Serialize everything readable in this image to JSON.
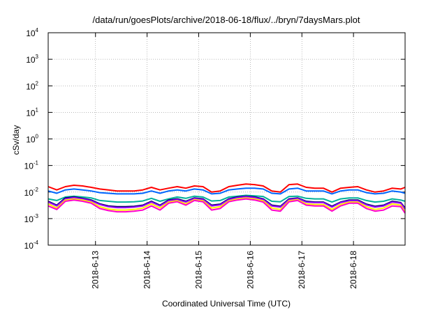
{
  "chart_data": {
    "type": "line",
    "title": "/data/run/goesPlots/archive/2018-06-18/flux/../bryn/7daysMars.plot",
    "xlabel": "Coordinated Universal Time (UTC)",
    "ylabel": "cSv/day",
    "x_range": [
      "2018-06-12 02:00",
      "2018-06-19 00:00"
    ],
    "x_tick_dates": [
      "2018-06-13 00:00",
      "2018-06-14 00:00",
      "2018-06-15 00:00",
      "2018-06-16 00:00",
      "2018-06-17 00:00",
      "2018-06-18 00:00"
    ],
    "x_tick_labels": [
      "2018-6-13",
      "2018-6-14",
      "2018-6-15",
      "2018-6-16",
      "2018-6-17",
      "2018-6-18"
    ],
    "y_scale": "log",
    "ylim": [
      0.0001,
      10000
    ],
    "y_tick_bases": [
      "10",
      "10",
      "10",
      "10",
      "10",
      "10",
      "10",
      "10",
      "10"
    ],
    "y_tick_exponents": [
      "4",
      "3",
      "2",
      "1",
      "0",
      "-1",
      "-2",
      "-3",
      "-4"
    ],
    "grid": true,
    "x": [
      "06-12 02:00",
      "06-12 06:00",
      "06-12 10:00",
      "06-12 14:00",
      "06-12 18:00",
      "06-12 22:00",
      "06-13 02:00",
      "06-13 06:00",
      "06-13 10:00",
      "06-13 14:00",
      "06-13 18:00",
      "06-13 22:00",
      "06-14 02:00",
      "06-14 06:00",
      "06-14 10:00",
      "06-14 14:00",
      "06-14 18:00",
      "06-14 22:00",
      "06-15 02:00",
      "06-15 06:00",
      "06-15 10:00",
      "06-15 14:00",
      "06-15 18:00",
      "06-15 22:00",
      "06-16 02:00",
      "06-16 06:00",
      "06-16 10:00",
      "06-16 14:00",
      "06-16 18:00",
      "06-16 22:00",
      "06-17 02:00",
      "06-17 06:00",
      "06-17 10:00",
      "06-17 14:00",
      "06-17 18:00",
      "06-17 22:00",
      "06-18 02:00",
      "06-18 06:00",
      "06-18 10:00",
      "06-18 14:00",
      "06-18 18:00",
      "06-18 22:00",
      "06-19 00:00"
    ],
    "series": [
      {
        "color": "#ff0000",
        "values": [
          0.016,
          0.012,
          0.016,
          0.018,
          0.017,
          0.015,
          0.013,
          0.012,
          0.011,
          0.011,
          0.011,
          0.012,
          0.015,
          0.012,
          0.014,
          0.016,
          0.014,
          0.017,
          0.016,
          0.01,
          0.011,
          0.016,
          0.018,
          0.02,
          0.019,
          0.017,
          0.011,
          0.01,
          0.019,
          0.02,
          0.015,
          0.014,
          0.014,
          0.01,
          0.014,
          0.015,
          0.016,
          0.012,
          0.01,
          0.011,
          0.014,
          0.013,
          0.015
        ]
      },
      {
        "color": "#0066ff",
        "values": [
          0.011,
          0.009,
          0.012,
          0.013,
          0.012,
          0.011,
          0.0095,
          0.009,
          0.0085,
          0.0085,
          0.0085,
          0.009,
          0.011,
          0.009,
          0.011,
          0.012,
          0.011,
          0.013,
          0.012,
          0.0085,
          0.009,
          0.012,
          0.013,
          0.014,
          0.014,
          0.013,
          0.009,
          0.0085,
          0.013,
          0.014,
          0.011,
          0.011,
          0.011,
          0.0085,
          0.011,
          0.012,
          0.012,
          0.0095,
          0.0085,
          0.009,
          0.011,
          0.01,
          0.009
        ]
      },
      {
        "color": "#00b09a",
        "values": [
          0.0055,
          0.0048,
          0.0065,
          0.007,
          0.0065,
          0.006,
          0.0048,
          0.0045,
          0.0042,
          0.0042,
          0.0043,
          0.0046,
          0.0058,
          0.0045,
          0.0055,
          0.0065,
          0.0058,
          0.007,
          0.0065,
          0.0046,
          0.0048,
          0.0065,
          0.007,
          0.0075,
          0.0072,
          0.0068,
          0.0045,
          0.0043,
          0.0068,
          0.007,
          0.0058,
          0.0055,
          0.0055,
          0.0042,
          0.0055,
          0.006,
          0.006,
          0.0048,
          0.0042,
          0.0045,
          0.0055,
          0.005,
          0.0045
        ]
      },
      {
        "color": "#000066",
        "values": [
          0.0045,
          0.0032,
          0.006,
          0.0065,
          0.0058,
          0.005,
          0.0036,
          0.003,
          0.0028,
          0.0028,
          0.0029,
          0.0032,
          0.0045,
          0.0032,
          0.005,
          0.0055,
          0.0045,
          0.006,
          0.0055,
          0.0032,
          0.0035,
          0.0055,
          0.0065,
          0.007,
          0.0065,
          0.0055,
          0.0032,
          0.0029,
          0.0055,
          0.006,
          0.0045,
          0.0042,
          0.0042,
          0.0029,
          0.0042,
          0.005,
          0.005,
          0.0035,
          0.0029,
          0.0032,
          0.0045,
          0.004,
          0.0025
        ]
      },
      {
        "color": "#9900ff",
        "values": [
          0.0042,
          0.003,
          0.0055,
          0.0062,
          0.0055,
          0.0047,
          0.0034,
          0.0028,
          0.0026,
          0.0026,
          0.0027,
          0.003,
          0.0042,
          0.003,
          0.0047,
          0.0052,
          0.0042,
          0.0057,
          0.0052,
          0.003,
          0.0033,
          0.0052,
          0.0062,
          0.0067,
          0.0062,
          0.0052,
          0.003,
          0.0027,
          0.0052,
          0.0057,
          0.0042,
          0.004,
          0.004,
          0.0027,
          0.004,
          0.0047,
          0.0047,
          0.0033,
          0.0027,
          0.003,
          0.0042,
          0.0038,
          0.0023
        ]
      },
      {
        "color": "#ffee00",
        "values": [
          0.0036,
          0.0025,
          0.005,
          0.0055,
          0.005,
          0.0042,
          0.0028,
          0.0023,
          0.0021,
          0.0021,
          0.0022,
          0.0025,
          0.0036,
          0.0025,
          0.0042,
          0.0047,
          0.0036,
          0.0052,
          0.0047,
          0.0025,
          0.0028,
          0.0047,
          0.0055,
          0.006,
          0.0055,
          0.0047,
          0.0025,
          0.0022,
          0.0047,
          0.0052,
          0.0036,
          0.0034,
          0.0034,
          0.0022,
          0.0034,
          0.0042,
          0.0042,
          0.0028,
          0.0022,
          0.0025,
          0.0036,
          0.0032,
          0.0018
        ]
      },
      {
        "color": "#ff00cc",
        "values": [
          0.003,
          0.0022,
          0.0045,
          0.005,
          0.0045,
          0.0038,
          0.0024,
          0.002,
          0.0018,
          0.0018,
          0.0019,
          0.0021,
          0.003,
          0.0021,
          0.0038,
          0.0043,
          0.0032,
          0.0048,
          0.0043,
          0.0021,
          0.0024,
          0.0043,
          0.005,
          0.0055,
          0.005,
          0.0042,
          0.0021,
          0.0019,
          0.0043,
          0.0048,
          0.0032,
          0.003,
          0.003,
          0.0019,
          0.003,
          0.0038,
          0.0038,
          0.0024,
          0.0019,
          0.0021,
          0.003,
          0.0028,
          0.0016
        ]
      }
    ]
  }
}
